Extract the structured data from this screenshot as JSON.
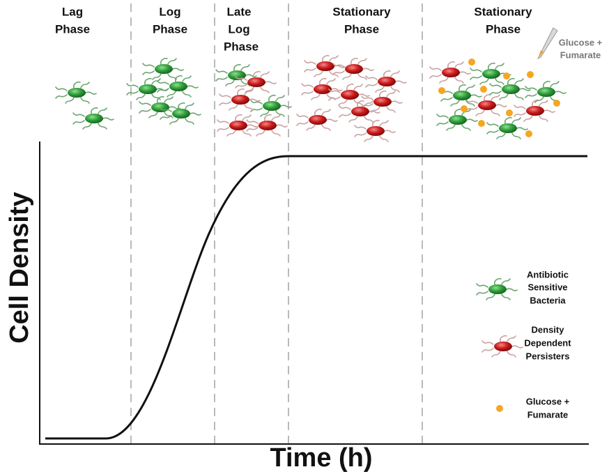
{
  "phases": [
    {
      "lines": [
        "Lag",
        "Phase"
      ]
    },
    {
      "lines": [
        "Log",
        "Phase"
      ]
    },
    {
      "lines": [
        "Late",
        "Log",
        "Phase"
      ]
    },
    {
      "lines": [
        "Stationary",
        "Phase"
      ]
    },
    {
      "lines": [
        "Stationary",
        "Phase"
      ]
    }
  ],
  "annotation": {
    "lines": [
      "Glucose +",
      "Fumarate"
    ]
  },
  "axes": {
    "y_label": "Cell Density",
    "x_label": "Time (h)"
  },
  "legend": [
    {
      "lines": [
        "Antibiotic",
        "Sensitive",
        "Bacteria"
      ]
    },
    {
      "lines": [
        "Density",
        "Dependent",
        "Persisters"
      ]
    },
    {
      "lines": [
        "Glucose +",
        "Fumarate"
      ]
    }
  ]
}
